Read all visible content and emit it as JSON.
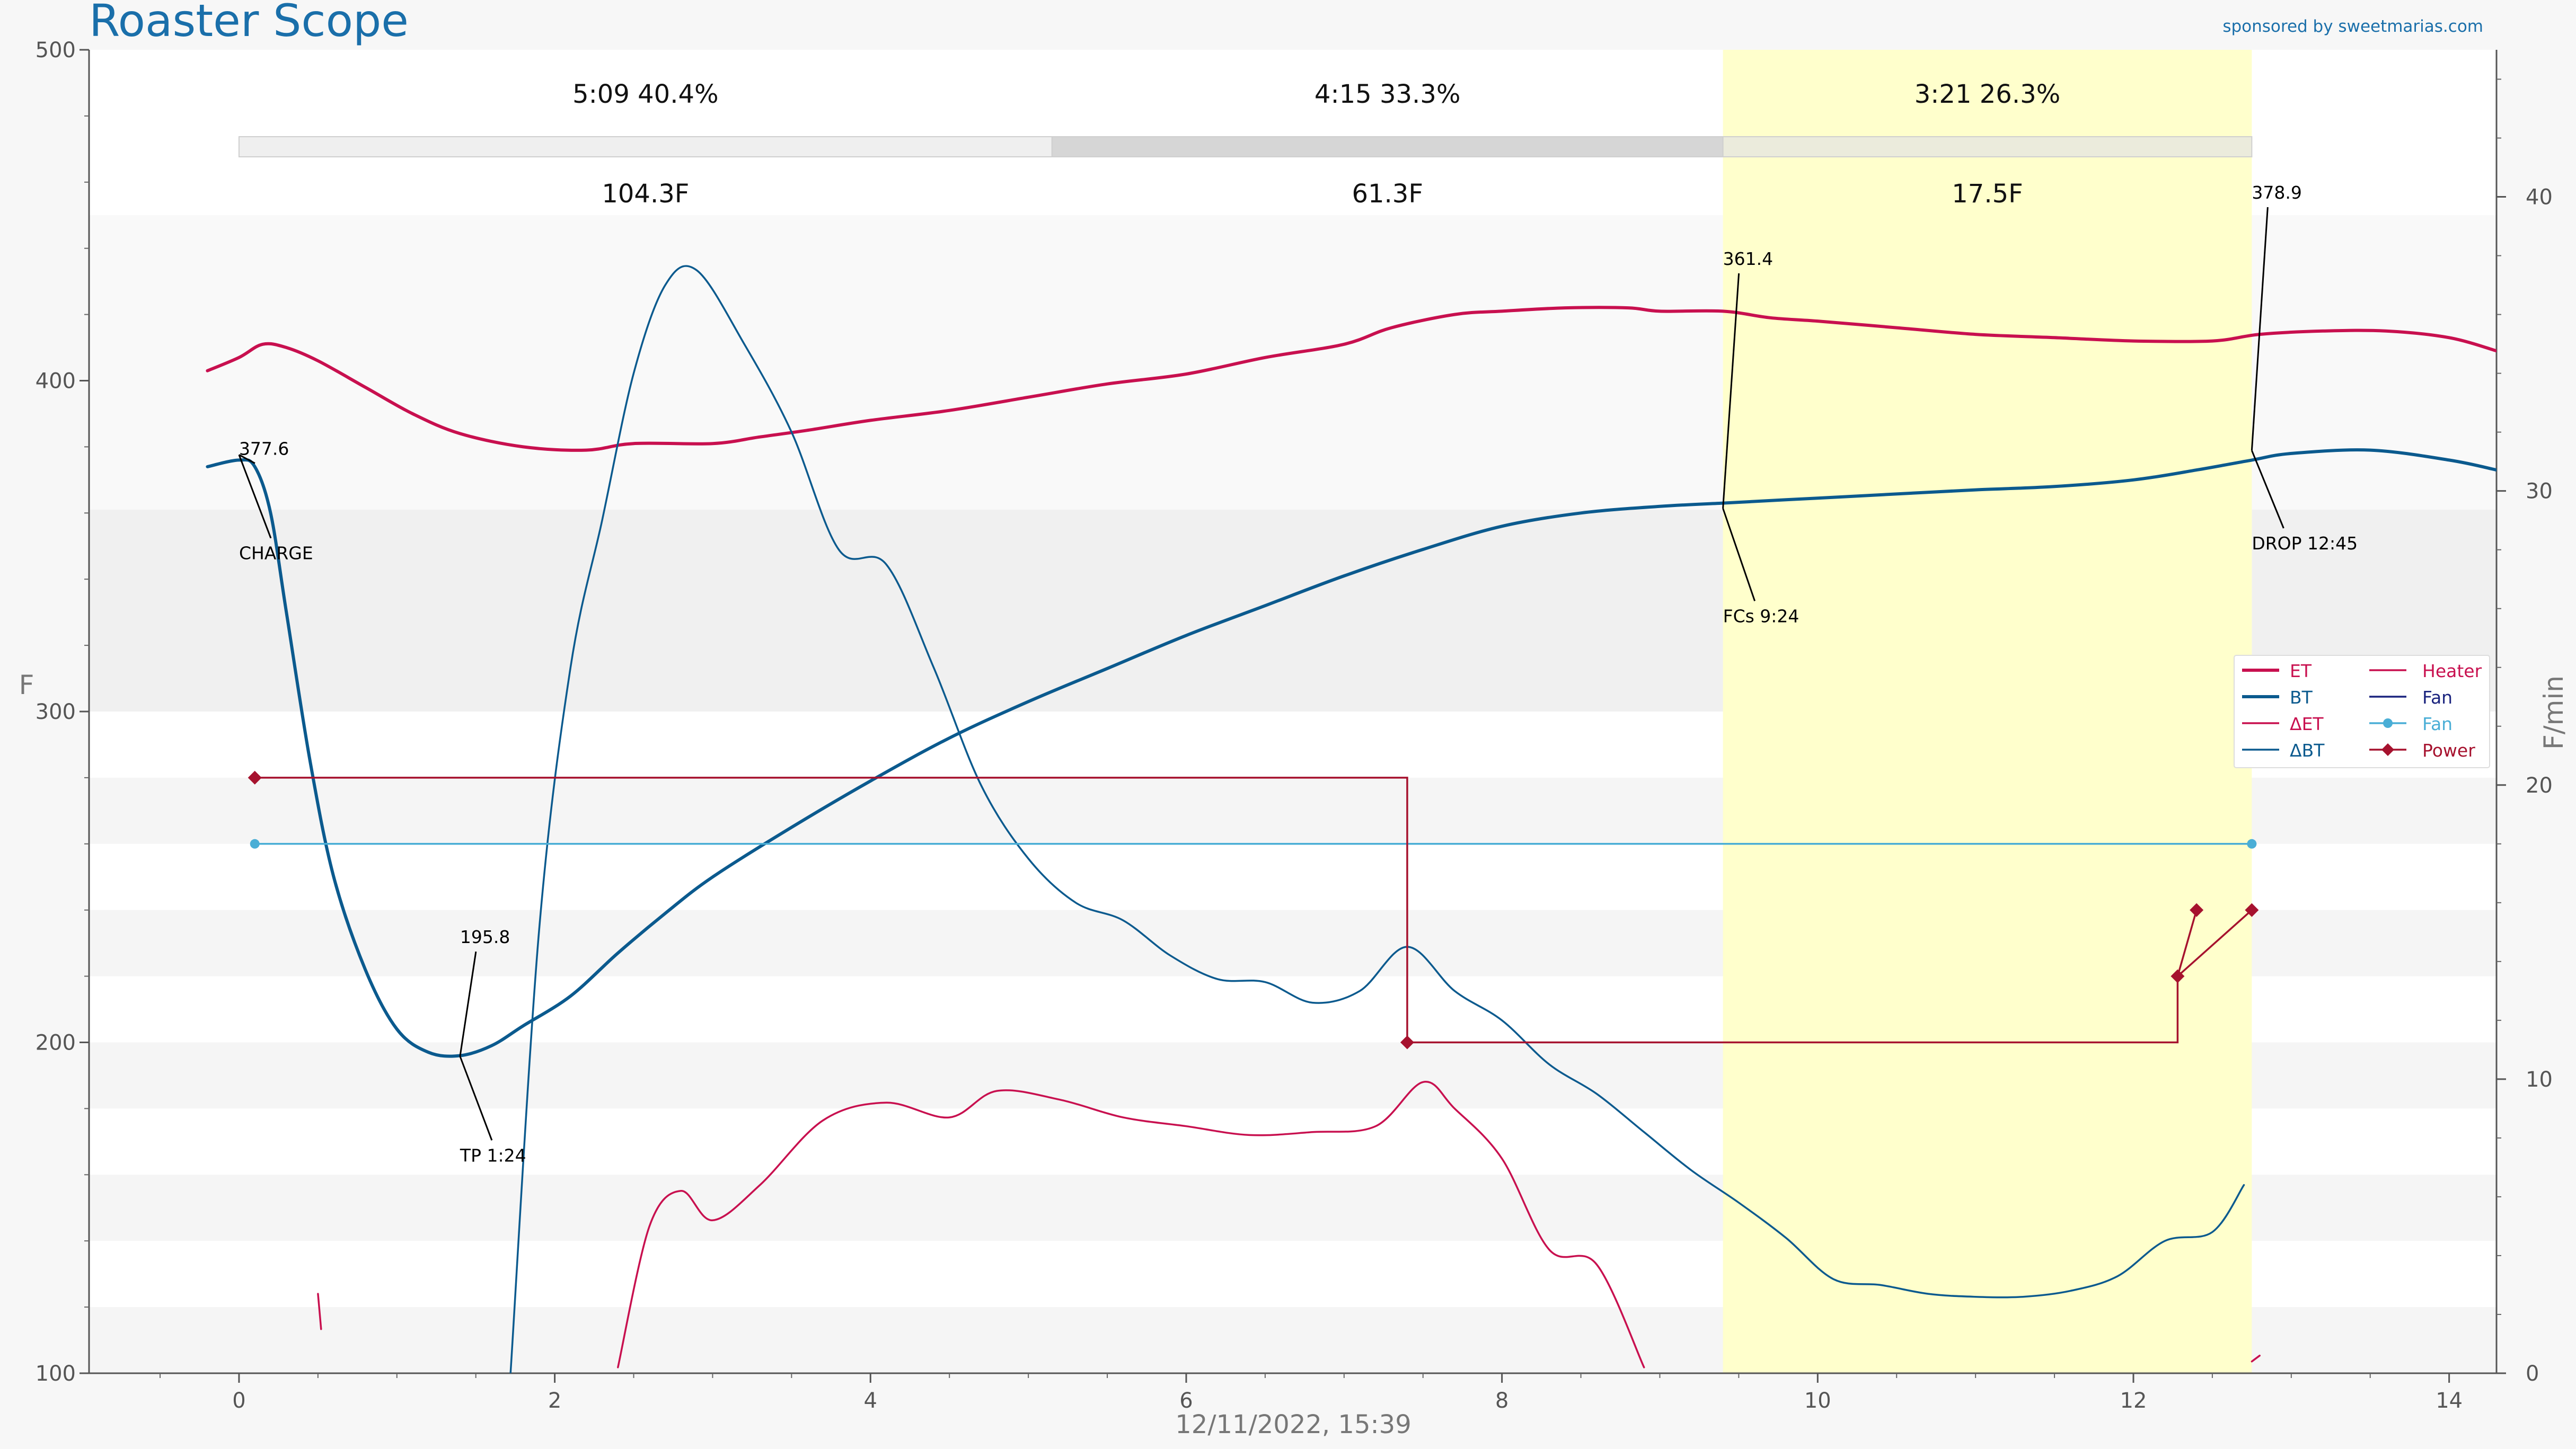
{
  "header": {
    "title": "Roaster Scope",
    "sponsor": "sponsored by sweetmarias.com"
  },
  "colors": {
    "et": "#c8104f",
    "bt": "#0b5a8e",
    "fan": "#4aaed6",
    "power": "#a6122e",
    "heater": "#c8104f",
    "fan_legend": "#1a237e",
    "highlight": "#ffffcc",
    "title": "#1a6faa"
  },
  "chart_data": {
    "type": "line",
    "xlabel": "12/11/2022, 15:39",
    "ylabel_left": "F",
    "ylabel_right": "F/min",
    "xlim": [
      -0.95,
      14.3
    ],
    "ylim_left": [
      100,
      500
    ],
    "ylim_right": [
      0,
      45
    ],
    "x_ticks": [
      "0",
      "2",
      "4",
      "6",
      "8",
      "10",
      "12",
      "14"
    ],
    "y_ticks_left": [
      "100",
      "200",
      "300",
      "400",
      "500"
    ],
    "y_ticks_right": [
      "0",
      "10",
      "20",
      "30",
      "40"
    ],
    "phases": [
      {
        "time": "5:09",
        "pct": "40.4%",
        "rise": "104.3F",
        "start": 0,
        "end": 5.15
      },
      {
        "time": "4:15",
        "pct": "33.3%",
        "rise": "61.3F",
        "start": 5.15,
        "end": 9.4
      },
      {
        "time": "3:21",
        "pct": "26.3%",
        "rise": "17.5F",
        "start": 9.4,
        "end": 12.75
      }
    ],
    "series": [
      {
        "name": "ET",
        "axis": "left",
        "x": [
          -0.2,
          0,
          0.15,
          0.3,
          0.5,
          0.8,
          1.1,
          1.4,
          1.8,
          2.2,
          2.5,
          3.0,
          3.3,
          3.6,
          4.0,
          4.5,
          5.0,
          5.5,
          6.0,
          6.5,
          7.0,
          7.3,
          7.7,
          8.0,
          8.4,
          8.8,
          9.0,
          9.4,
          9.7,
          10.0,
          10.5,
          11.0,
          11.5,
          12.0,
          12.5,
          12.8,
          13.2,
          13.6,
          14.0,
          14.3
        ],
        "y": [
          403,
          407,
          411,
          410,
          406,
          398,
          390,
          384,
          380,
          379,
          381,
          381,
          383,
          385,
          388,
          391,
          395,
          399,
          402,
          407,
          411,
          416,
          420,
          421,
          422,
          422,
          421,
          421,
          419,
          418,
          416,
          414,
          413,
          412,
          412,
          414,
          415,
          415,
          413,
          409
        ]
      },
      {
        "name": "BT",
        "axis": "left",
        "x": [
          -0.2,
          0,
          0.1,
          0.2,
          0.3,
          0.45,
          0.6,
          0.8,
          1.0,
          1.2,
          1.4,
          1.6,
          1.8,
          2.1,
          2.4,
          2.7,
          3.0,
          3.5,
          4.0,
          4.5,
          5.0,
          5.5,
          6.0,
          6.5,
          7.0,
          7.5,
          8.0,
          8.5,
          9.0,
          9.4,
          9.8,
          10.2,
          10.6,
          11.0,
          11.5,
          12.0,
          12.4,
          12.75,
          13.0,
          13.5,
          14.0,
          14.3
        ],
        "y": [
          374,
          376,
          374,
          360,
          330,
          285,
          250,
          222,
          204,
          197,
          196,
          199,
          205,
          214,
          227,
          239,
          250,
          265,
          279,
          292,
          303,
          313,
          323,
          332,
          341,
          349,
          356,
          360,
          362,
          363,
          364,
          365,
          366,
          367,
          368,
          370,
          373,
          376,
          378,
          379,
          376,
          373
        ]
      },
      {
        "name": "ΔET",
        "axis": "right",
        "x": [
          0.5,
          0.52,
          null,
          2.4,
          2.6,
          2.8,
          3.0,
          3.3,
          3.7,
          4.1,
          4.5,
          4.8,
          5.2,
          5.6,
          6.0,
          6.4,
          6.8,
          7.2,
          7.5,
          7.7,
          8.0,
          8.3,
          8.6,
          8.9,
          null,
          12.75,
          12.8
        ],
        "y": [
          2.7,
          1.5,
          null,
          0.2,
          5,
          6.2,
          5.2,
          6.4,
          8.6,
          9.2,
          8.7,
          9.6,
          9.3,
          8.7,
          8.4,
          8.1,
          8.2,
          8.4,
          9.9,
          9.0,
          7.3,
          4.2,
          3.7,
          0.2,
          null,
          0.4,
          0.6
        ]
      },
      {
        "name": "ΔBT",
        "axis": "right",
        "x": [
          1.72,
          1.9,
          2.1,
          2.3,
          2.5,
          2.7,
          2.9,
          3.2,
          3.5,
          3.8,
          4.1,
          4.4,
          4.7,
          5.0,
          5.3,
          5.6,
          5.9,
          6.2,
          6.5,
          6.8,
          7.1,
          7.4,
          7.7,
          8.0,
          8.3,
          8.6,
          8.9,
          9.2,
          9.5,
          9.8,
          10.1,
          10.4,
          10.7,
          11.0,
          11.3,
          11.6,
          11.9,
          12.2,
          12.5,
          12.7
        ],
        "y": [
          0,
          15,
          24,
          29,
          34,
          37,
          37.5,
          35,
          32,
          28,
          27.5,
          24,
          20,
          17.5,
          16,
          15.4,
          14.2,
          13.4,
          13.3,
          12.6,
          13,
          14.5,
          13,
          12,
          10.5,
          9.5,
          8.2,
          6.9,
          5.8,
          4.6,
          3.2,
          3.0,
          2.7,
          2.6,
          2.6,
          2.8,
          3.3,
          4.5,
          4.8,
          6.4
        ]
      },
      {
        "name": "Fan",
        "axis": "left",
        "x": [
          0.1,
          12.75
        ],
        "y": [
          260,
          260
        ]
      },
      {
        "name": "Power",
        "axis": "left",
        "x": [
          0.1,
          7.4,
          7.4,
          12.28,
          12.28,
          12.75
        ],
        "y": [
          280,
          280,
          200,
          200,
          220,
          240
        ]
      }
    ],
    "annotations": [
      {
        "label": "377.6",
        "x": 0.0,
        "y": 377.6
      },
      {
        "label": "CHARGE",
        "x": 0.0,
        "y": 346
      },
      {
        "label": "195.8",
        "x": 1.4,
        "y": 230
      },
      {
        "label": "TP 1:24",
        "x": 1.4,
        "y": 164
      },
      {
        "label": "361.4",
        "x": 9.4,
        "y": 435
      },
      {
        "label": "FCs 9:24",
        "x": 9.4,
        "y": 327
      },
      {
        "label": "378.9",
        "x": 12.75,
        "y": 455
      },
      {
        "label": "DROP 12:45",
        "x": 12.75,
        "y": 349
      }
    ],
    "legend": {
      "placement": "right",
      "col1": [
        "ET",
        "BT",
        "ΔET",
        "ΔBT"
      ],
      "col2": [
        "Heater",
        "Fan",
        "Fan",
        "Power"
      ]
    },
    "grid": true
  }
}
